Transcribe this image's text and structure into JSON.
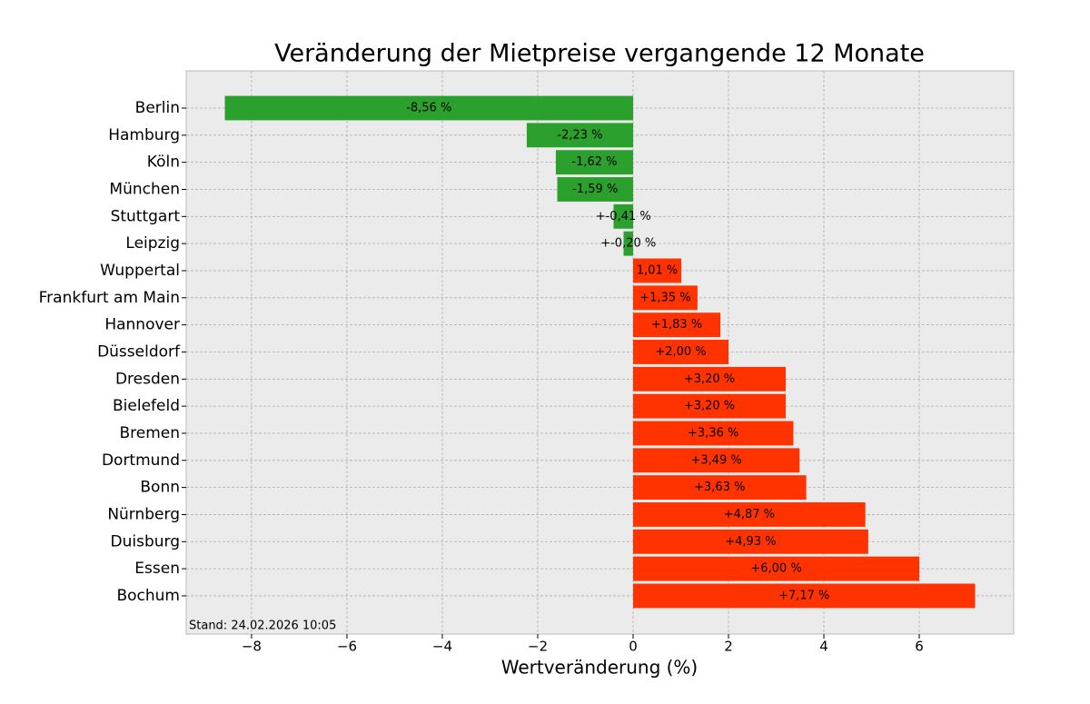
{
  "chart_data": {
    "type": "barh",
    "title": "Veränderung der Mietpreise vergangende 12 Monate",
    "xlabel": "Wertveränderung (%)",
    "annotation": "Stand: 24.02.2026 10:05",
    "categories": [
      "Berlin",
      "Hamburg",
      "Köln",
      "München",
      "Stuttgart",
      "Leipzig",
      "Wuppertal",
      "Frankfurt am Main",
      "Hannover",
      "Düsseldorf",
      "Dresden",
      "Bielefeld",
      "Bremen",
      "Dortmund",
      "Bonn",
      "Nürnberg",
      "Duisburg",
      "Essen",
      "Bochum"
    ],
    "values": [
      -8.56,
      -2.23,
      -1.62,
      -1.59,
      -0.41,
      -0.2,
      1.01,
      1.35,
      1.83,
      2.0,
      3.2,
      3.2,
      3.36,
      3.49,
      3.63,
      4.87,
      4.93,
      6.0,
      7.17
    ],
    "value_labels": [
      "-8,56 %",
      "-2,23 %",
      "-1,62 %",
      "-1,59 %",
      "+-0,41 %",
      "+-0,20 %",
      "1,01 %",
      "+1,35 %",
      "+1,83 %",
      "+2,00 %",
      "+3,20 %",
      "+3,20 %",
      "+3,36 %",
      "+3,49 %",
      "+3,63 %",
      "+4,87 %",
      "+4,93 %",
      "+6,00 %",
      "+7,17 %"
    ],
    "colors": [
      "#2ca02c",
      "#2ca02c",
      "#2ca02c",
      "#2ca02c",
      "#2ca02c",
      "#2ca02c",
      "#ff3300",
      "#ff3300",
      "#ff3300",
      "#ff3300",
      "#ff3300",
      "#ff3300",
      "#ff3300",
      "#ff3300",
      "#ff3300",
      "#ff3300",
      "#ff3300",
      "#ff3300",
      "#ff3300"
    ],
    "xlim": [
      -9.37,
      7.98
    ],
    "xticks": [
      {
        "value": -8,
        "label": "−8"
      },
      {
        "value": -6,
        "label": "−6"
      },
      {
        "value": -4,
        "label": "−4"
      },
      {
        "value": -2,
        "label": "−2"
      },
      0,
      2,
      4,
      6
    ],
    "grid": true
  }
}
